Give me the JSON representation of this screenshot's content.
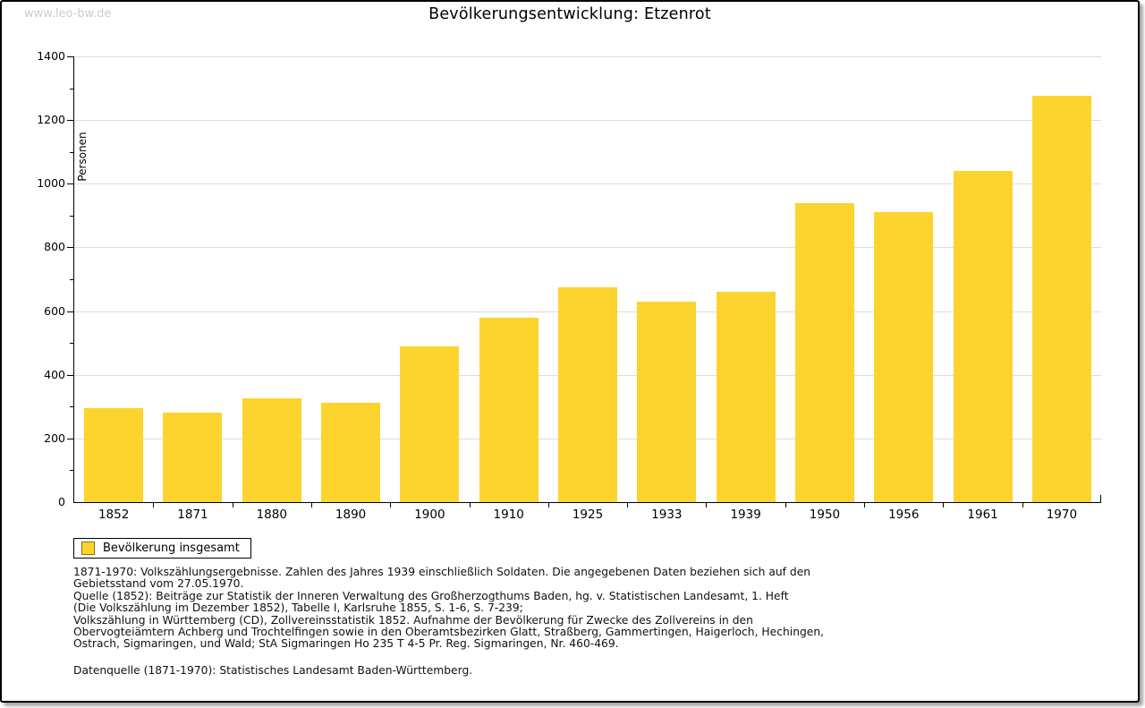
{
  "watermark": "www.leo-bw.de",
  "title": "Bevölkerungsentwicklung: Etzenrot",
  "chart_data": {
    "type": "bar",
    "title": "Bevölkerungsentwicklung: Etzenrot",
    "ylabel": "Personen",
    "xlabel": "",
    "categories": [
      "1852",
      "1871",
      "1880",
      "1890",
      "1900",
      "1910",
      "1925",
      "1933",
      "1939",
      "1950",
      "1956",
      "1961",
      "1970"
    ],
    "values": [
      295,
      280,
      327,
      313,
      490,
      578,
      676,
      631,
      660,
      939,
      910,
      1039,
      1277
    ],
    "ylim": [
      0,
      1400
    ],
    "ytick_major_step": 200,
    "ytick_minor_step": 100,
    "grid": "horizontal-major-lines",
    "legend_entries": [
      "Bevölkerung insgesamt"
    ],
    "legend_position": "bottom-left",
    "bar_color": "#fcd42d"
  },
  "legend": {
    "label": "Bevölkerung insgesamt",
    "swatch_color": "#fcd42d",
    "swatch_border_color": "#8b7500"
  },
  "colors": {
    "bar": "#fcd42d",
    "gridline": "#dddddd",
    "axis": "#000000",
    "watermark": "#cccccc"
  },
  "footnotes": [
    "1871-1970: Volkszählungsergebnisse. Zahlen des Jahres 1939 einschließlich Soldaten. Die angegebenen Daten beziehen sich auf den",
    "Gebietsstand vom 27.05.1970.",
    "Quelle (1852): Beiträge zur Statistik der Inneren Verwaltung des Großherzogthums Baden, hg. v. Statistischen Landesamt, 1. Heft",
    "(Die Volkszählung im Dezember 1852), Tabelle I, Karlsruhe 1855, S. 1-6, S. 7-239;",
    "Volkszählung in Württemberg (CD), Zollvereinsstatistik 1852. Aufnahme der Bevölkerung für Zwecke des Zollvereins in den",
    "Obervogteiämtern Achberg und Trochtelfingen sowie in den Oberamtsbezirken Glatt, Straßberg, Gammertingen, Haigerloch, Hechingen,",
    "Ostrach, Sigmaringen, und Wald; StA Sigmaringen Ho 235 T 4-5 Pr. Reg. Sigmaringen, Nr. 460-469."
  ],
  "datasource": "Datenquelle (1871-1970): Statistisches Landesamt Baden-Württemberg."
}
